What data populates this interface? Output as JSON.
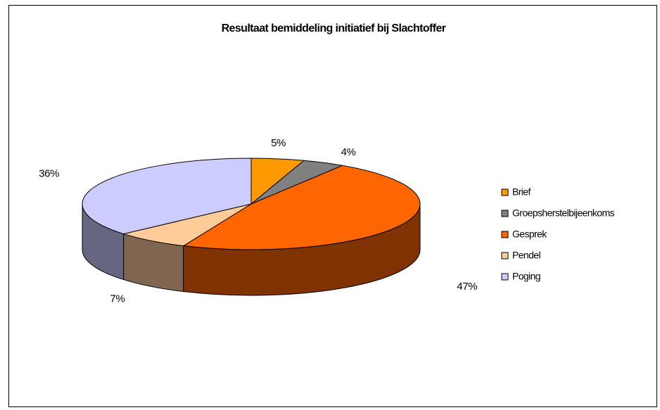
{
  "chart_data": {
    "type": "pie",
    "title": "Resultaat bemiddeling initiatief bij Slachtoffer",
    "categories": [
      "Brief",
      "Groepsherstelbijeenkoms",
      "Gesprek",
      "Pendel",
      "Poging"
    ],
    "values": [
      5,
      4,
      47,
      7,
      36
    ],
    "labels": [
      "5%",
      "4%",
      "47%",
      "7%",
      "36%"
    ],
    "colors": [
      "#FF9900",
      "#808080",
      "#FF6600",
      "#FFCC99",
      "#CCCCFF"
    ],
    "side_colors": [
      "#A86400",
      "#555555",
      "#803300",
      "#806650",
      "#666680"
    ],
    "legend_position": "right",
    "three_d": true
  }
}
